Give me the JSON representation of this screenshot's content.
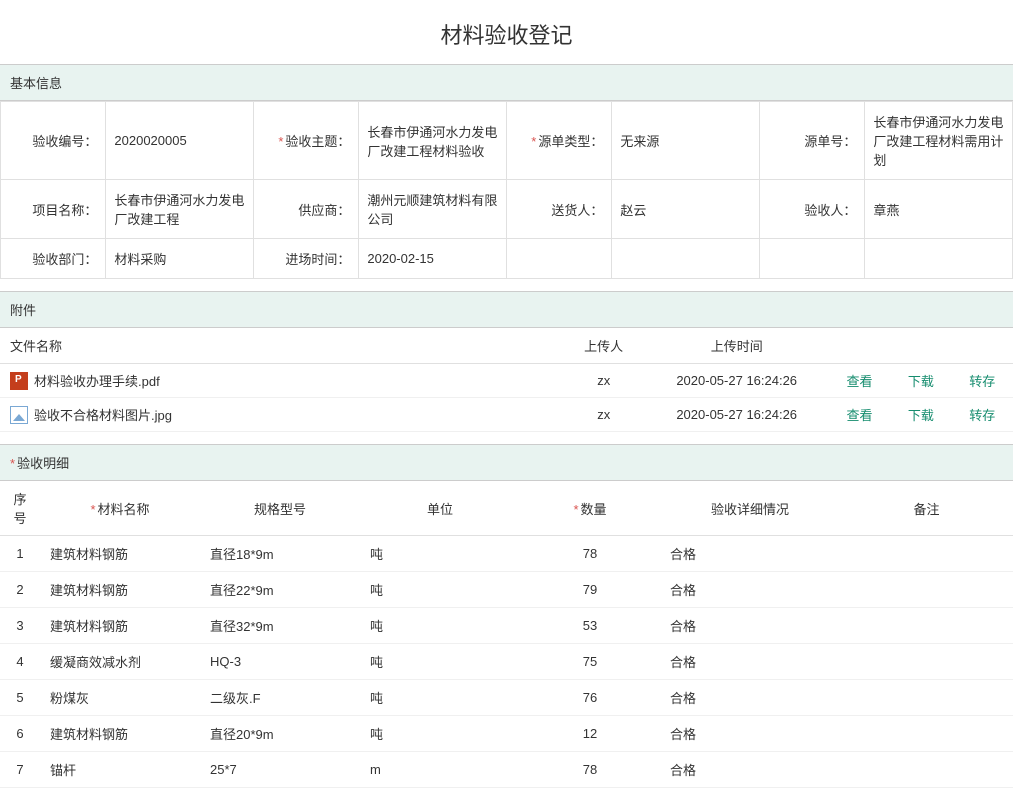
{
  "title": "材料验收登记",
  "sections": {
    "basic": "基本信息",
    "attachments": "附件",
    "details": "验收明细"
  },
  "basic": {
    "row1": {
      "acceptNoLabel": "验收编号：",
      "acceptNo": "2020020005",
      "subjectLabel": "验收主题：",
      "subject": "长春市伊通河水力发电厂改建工程材料验收",
      "sourceTypeLabel": "源单类型：",
      "sourceType": "无来源",
      "sourceNoLabel": "源单号：",
      "sourceNo": "长春市伊通河水力发电厂改建工程材料需用计划"
    },
    "row2": {
      "projectLabel": "项目名称：",
      "project": "长春市伊通河水力发电厂改建工程",
      "supplierLabel": "供应商：",
      "supplier": "潮州元顺建筑材料有限公司",
      "delivererLabel": "送货人：",
      "deliverer": "赵云",
      "acceptorLabel": "验收人：",
      "acceptor": "章燕"
    },
    "row3": {
      "deptLabel": "验收部门：",
      "dept": "材料采购",
      "enterTimeLabel": "进场时间：",
      "enterTime": "2020-02-15"
    }
  },
  "attHeaders": {
    "filename": "文件名称",
    "uploader": "上传人",
    "uploadTime": "上传时间"
  },
  "actions": {
    "view": "查看",
    "download": "下载",
    "transfer": "转存"
  },
  "attachments": [
    {
      "type": "pdf",
      "name": "材料验收办理手续.pdf",
      "uploader": "zx",
      "time": "2020-05-27 16:24:26"
    },
    {
      "type": "img",
      "name": "验收不合格材料图片.jpg",
      "uploader": "zx",
      "time": "2020-05-27 16:24:26"
    }
  ],
  "detailHeaders": {
    "seq": "序号",
    "name": "材料名称",
    "spec": "规格型号",
    "unit": "单位",
    "qty": "数量",
    "status": "验收详细情况",
    "remark": "备注"
  },
  "details": [
    {
      "seq": "1",
      "name": "建筑材料钢筋",
      "spec": "直径18*9m",
      "unit": "吨",
      "qty": "78",
      "status": "合格",
      "remark": ""
    },
    {
      "seq": "2",
      "name": "建筑材料钢筋",
      "spec": "直径22*9m",
      "unit": "吨",
      "qty": "79",
      "status": "合格",
      "remark": ""
    },
    {
      "seq": "3",
      "name": "建筑材料钢筋",
      "spec": "直径32*9m",
      "unit": "吨",
      "qty": "53",
      "status": "合格",
      "remark": ""
    },
    {
      "seq": "4",
      "name": "缓凝商效减水剂",
      "spec": "HQ-3",
      "unit": "吨",
      "qty": "75",
      "status": "合格",
      "remark": ""
    },
    {
      "seq": "5",
      "name": "粉煤灰",
      "spec": "二级灰.F",
      "unit": "吨",
      "qty": "76",
      "status": "合格",
      "remark": ""
    },
    {
      "seq": "6",
      "name": "建筑材料钢筋",
      "spec": "直径20*9m",
      "unit": "吨",
      "qty": "12",
      "status": "合格",
      "remark": ""
    },
    {
      "seq": "7",
      "name": "锚杆",
      "spec": "25*7",
      "unit": "m",
      "qty": "78",
      "status": "合格",
      "remark": ""
    }
  ],
  "colors": {
    "sectionBg": "#e8f3f0",
    "linkColor": "#158c6e",
    "requiredColor": "#d9534f",
    "borderColor": "#e0e0e0"
  }
}
